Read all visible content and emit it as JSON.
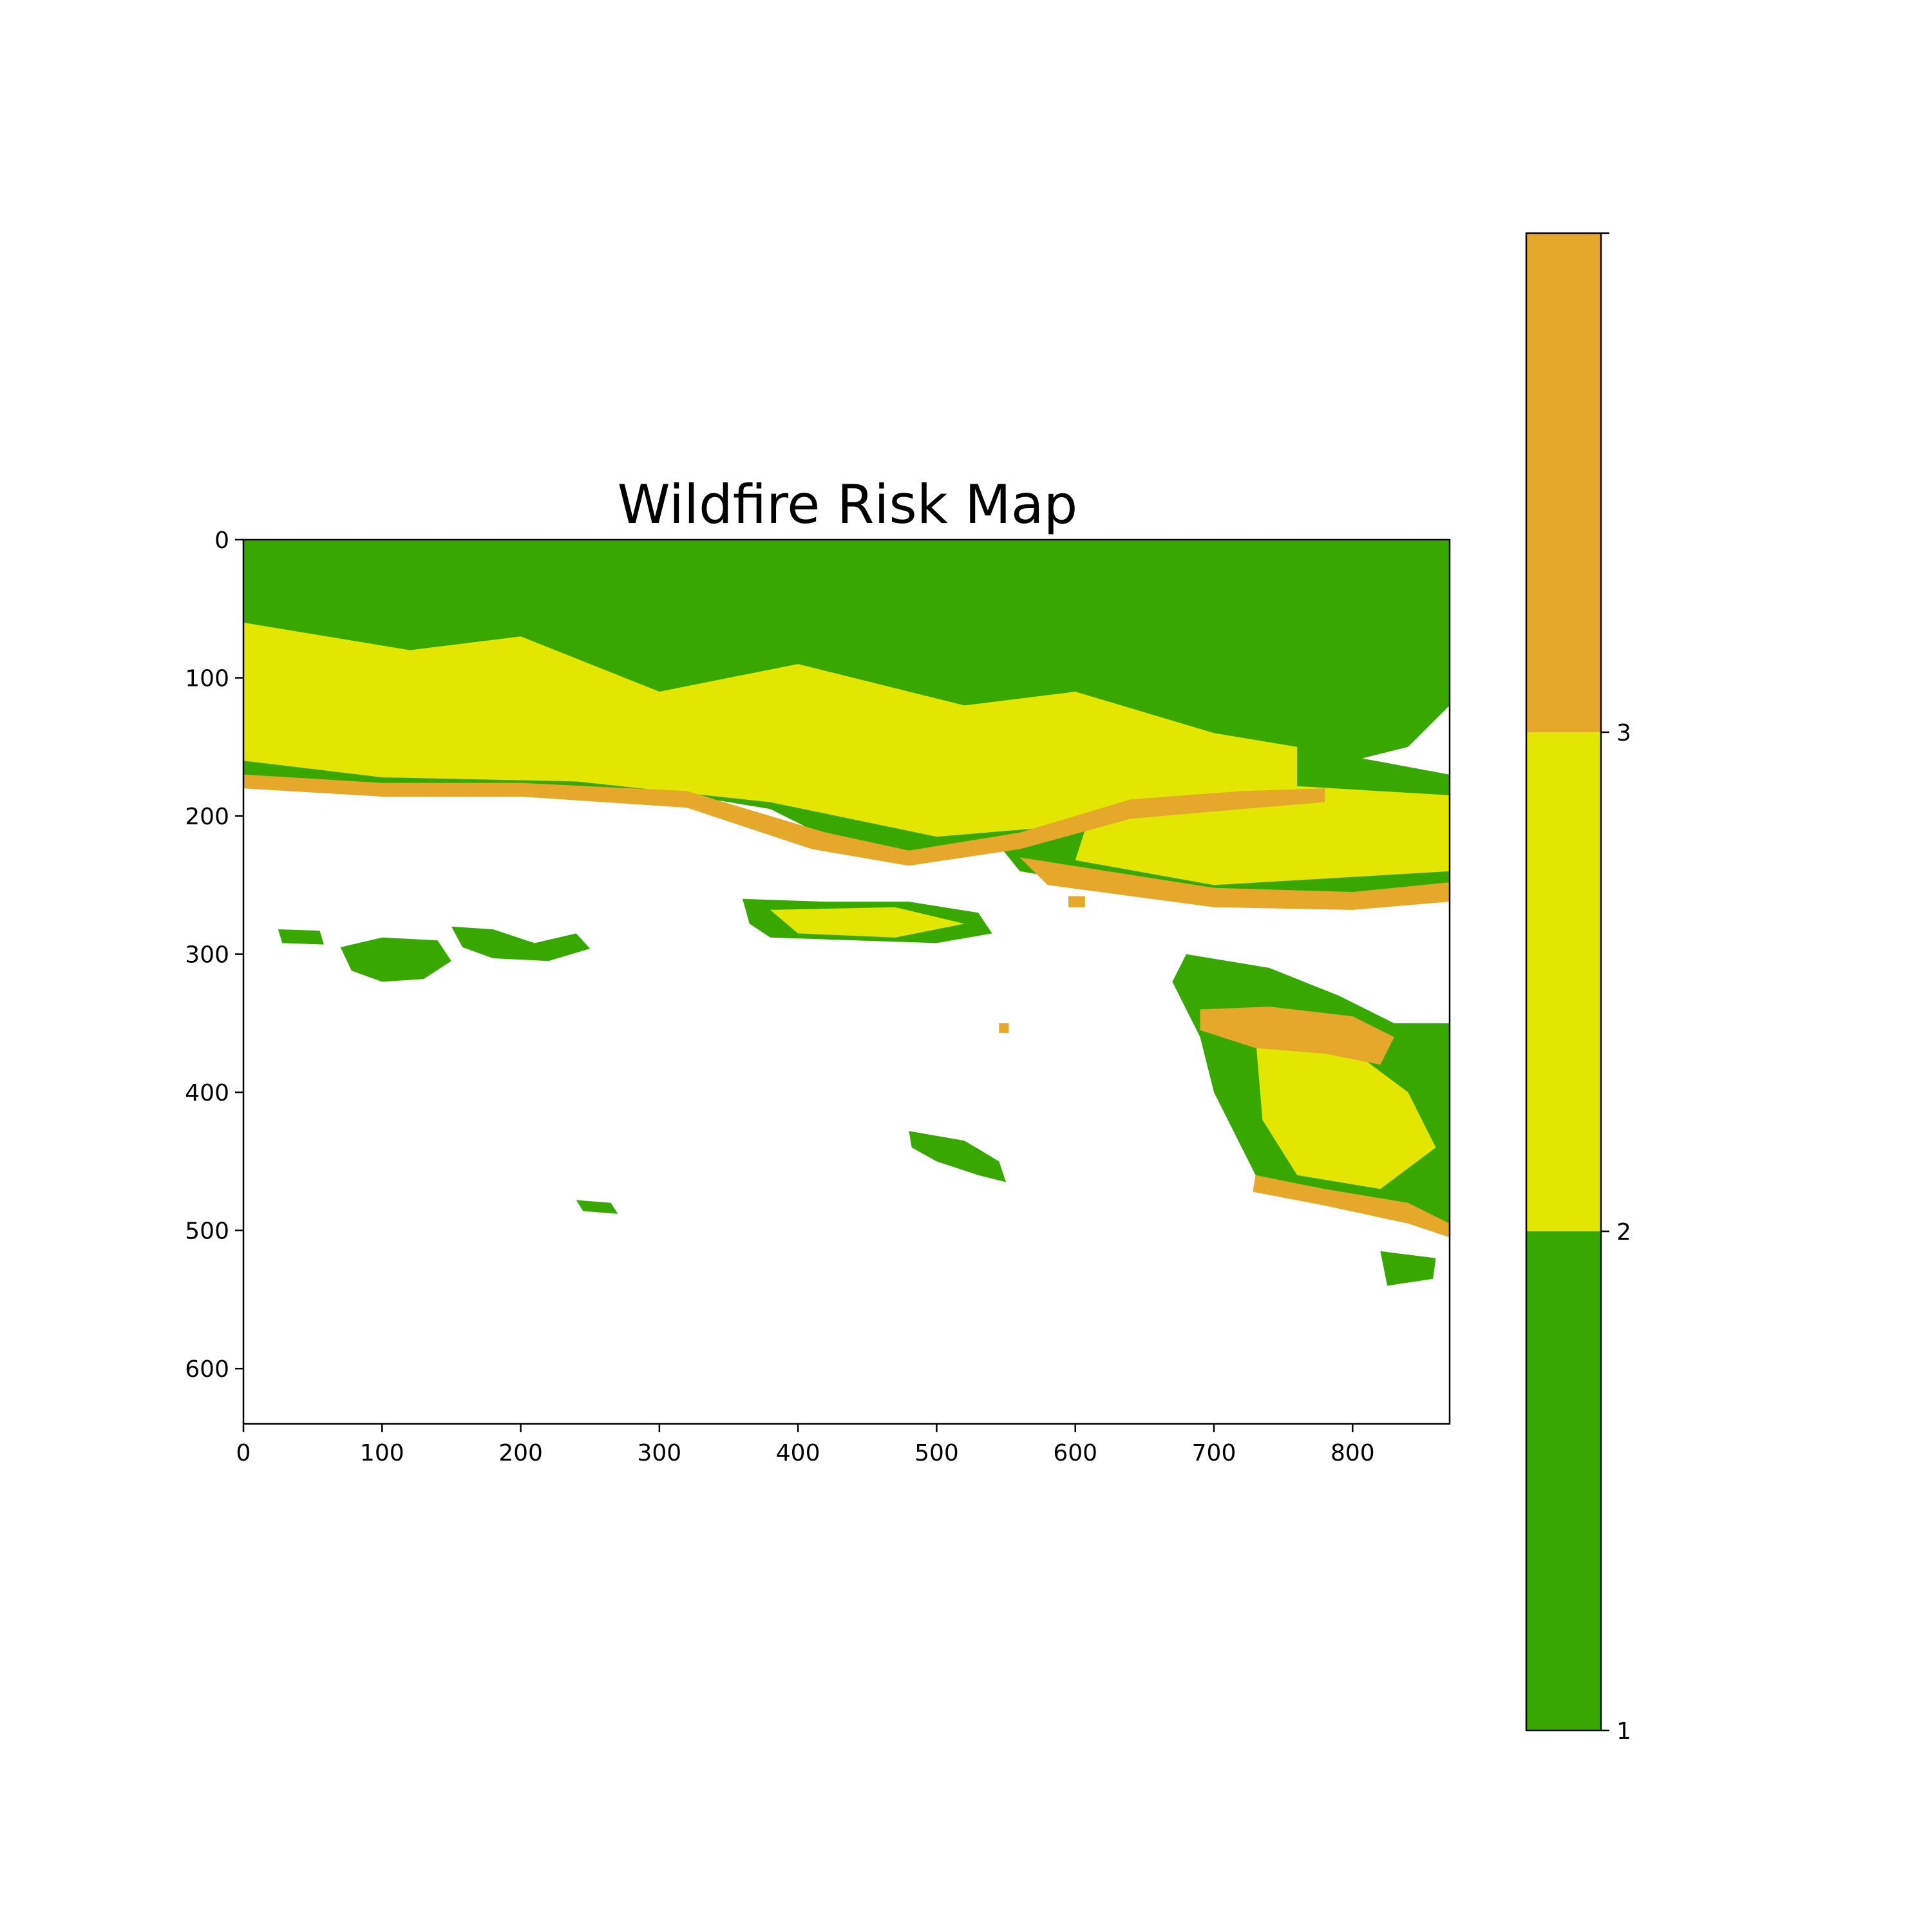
{
  "chart_data": {
    "type": "heatmap",
    "title": "Wildfire Risk Map",
    "xlabel": "",
    "ylabel": "",
    "xlim": [
      0,
      870
    ],
    "ylim": [
      640,
      0
    ],
    "x_ticks": [
      "0",
      "100",
      "200",
      "300",
      "400",
      "500",
      "600",
      "700",
      "800"
    ],
    "y_ticks": [
      "0",
      "100",
      "200",
      "300",
      "400",
      "500",
      "600"
    ],
    "x_tick_values": [
      0,
      100,
      200,
      300,
      400,
      500,
      600,
      700,
      800
    ],
    "y_tick_values": [
      0,
      100,
      200,
      300,
      400,
      500,
      600
    ],
    "colorbar": {
      "range": [
        1,
        4
      ],
      "ticks": [
        "1",
        "2",
        "3"
      ],
      "tick_values": [
        1,
        2,
        3
      ],
      "classes": [
        {
          "value": 1,
          "color": "#38a800"
        },
        {
          "value": 2,
          "color": "#e3e600"
        },
        {
          "value": 3,
          "color": "#e6a82a"
        }
      ]
    },
    "colors": {
      "low": "#38a800",
      "moderate": "#e3e600",
      "high": "#e6a82a",
      "no_data": "#ffffff"
    },
    "regions": [
      {
        "risk": 1,
        "polygon": [
          [
            0,
            0
          ],
          [
            870,
            0
          ],
          [
            870,
            120
          ],
          [
            840,
            150
          ],
          [
            800,
            160
          ],
          [
            760,
            175
          ],
          [
            700,
            180
          ],
          [
            650,
            190
          ],
          [
            600,
            200
          ],
          [
            560,
            215
          ],
          [
            500,
            225
          ],
          [
            460,
            230
          ],
          [
            420,
            215
          ],
          [
            380,
            195
          ],
          [
            320,
            185
          ],
          [
            250,
            180
          ],
          [
            180,
            178
          ],
          [
            100,
            178
          ],
          [
            40,
            178
          ],
          [
            0,
            170
          ]
        ]
      },
      {
        "risk": 1,
        "polygon": [
          [
            600,
            120
          ],
          [
            870,
            170
          ],
          [
            870,
            250
          ],
          [
            800,
            260
          ],
          [
            700,
            262
          ],
          [
            620,
            250
          ],
          [
            560,
            240
          ],
          [
            540,
            215
          ]
        ]
      },
      {
        "risk": 1,
        "polygon": [
          [
            680,
            300
          ],
          [
            740,
            310
          ],
          [
            790,
            330
          ],
          [
            830,
            350
          ],
          [
            870,
            350
          ],
          [
            870,
            500
          ],
          [
            840,
            490
          ],
          [
            800,
            480
          ],
          [
            760,
            470
          ],
          [
            730,
            460
          ],
          [
            720,
            440
          ],
          [
            700,
            400
          ],
          [
            690,
            360
          ],
          [
            670,
            320
          ]
        ]
      },
      {
        "risk": 1,
        "polygon": [
          [
            360,
            260
          ],
          [
            420,
            262
          ],
          [
            480,
            262
          ],
          [
            530,
            270
          ],
          [
            540,
            285
          ],
          [
            500,
            292
          ],
          [
            440,
            290
          ],
          [
            380,
            288
          ],
          [
            365,
            278
          ]
        ]
      },
      {
        "risk": 1,
        "polygon": [
          [
            70,
            295
          ],
          [
            100,
            288
          ],
          [
            140,
            290
          ],
          [
            150,
            305
          ],
          [
            130,
            318
          ],
          [
            100,
            320
          ],
          [
            78,
            312
          ]
        ]
      },
      {
        "risk": 1,
        "polygon": [
          [
            150,
            280
          ],
          [
            180,
            282
          ],
          [
            210,
            292
          ],
          [
            240,
            285
          ],
          [
            250,
            296
          ],
          [
            220,
            305
          ],
          [
            180,
            303
          ],
          [
            158,
            295
          ]
        ]
      },
      {
        "risk": 1,
        "polygon": [
          [
            25,
            282
          ],
          [
            55,
            283
          ],
          [
            58,
            293
          ],
          [
            28,
            292
          ]
        ]
      },
      {
        "risk": 1,
        "polygon": [
          [
            480,
            428
          ],
          [
            520,
            435
          ],
          [
            545,
            450
          ],
          [
            550,
            465
          ],
          [
            530,
            460
          ],
          [
            500,
            450
          ],
          [
            482,
            440
          ]
        ]
      },
      {
        "risk": 1,
        "polygon": [
          [
            240,
            478
          ],
          [
            265,
            480
          ],
          [
            270,
            488
          ],
          [
            245,
            486
          ]
        ]
      },
      {
        "risk": 1,
        "polygon": [
          [
            820,
            515
          ],
          [
            860,
            520
          ],
          [
            858,
            535
          ],
          [
            825,
            540
          ]
        ]
      },
      {
        "risk": 2,
        "polygon": [
          [
            0,
            60
          ],
          [
            120,
            80
          ],
          [
            200,
            70
          ],
          [
            300,
            110
          ],
          [
            400,
            90
          ],
          [
            520,
            120
          ],
          [
            600,
            110
          ],
          [
            700,
            140
          ],
          [
            760,
            150
          ],
          [
            760,
            190
          ],
          [
            620,
            205
          ],
          [
            500,
            215
          ],
          [
            380,
            190
          ],
          [
            240,
            175
          ],
          [
            100,
            172
          ],
          [
            0,
            160
          ]
        ]
      },
      {
        "risk": 2,
        "polygon": [
          [
            620,
            170
          ],
          [
            870,
            185
          ],
          [
            870,
            240
          ],
          [
            700,
            250
          ],
          [
            600,
            232
          ]
        ]
      },
      {
        "risk": 2,
        "polygon": [
          [
            730,
            360
          ],
          [
            800,
            370
          ],
          [
            840,
            400
          ],
          [
            860,
            440
          ],
          [
            820,
            470
          ],
          [
            760,
            460
          ],
          [
            735,
            420
          ]
        ]
      },
      {
        "risk": 2,
        "polygon": [
          [
            380,
            268
          ],
          [
            470,
            266
          ],
          [
            520,
            278
          ],
          [
            470,
            288
          ],
          [
            400,
            285
          ]
        ]
      },
      {
        "risk": 3,
        "polygon": [
          [
            0,
            170
          ],
          [
            100,
            176
          ],
          [
            200,
            176
          ],
          [
            320,
            182
          ],
          [
            420,
            212
          ],
          [
            480,
            225
          ],
          [
            560,
            212
          ],
          [
            640,
            188
          ],
          [
            720,
            182
          ],
          [
            780,
            180
          ],
          [
            780,
            190
          ],
          [
            720,
            195
          ],
          [
            640,
            202
          ],
          [
            560,
            224
          ],
          [
            480,
            236
          ],
          [
            410,
            224
          ],
          [
            320,
            194
          ],
          [
            200,
            186
          ],
          [
            100,
            186
          ],
          [
            0,
            180
          ]
        ]
      },
      {
        "risk": 3,
        "polygon": [
          [
            560,
            230
          ],
          [
            700,
            252
          ],
          [
            800,
            255
          ],
          [
            870,
            248
          ],
          [
            870,
            262
          ],
          [
            800,
            268
          ],
          [
            700,
            266
          ],
          [
            580,
            250
          ]
        ]
      },
      {
        "risk": 3,
        "polygon": [
          [
            690,
            340
          ],
          [
            740,
            338
          ],
          [
            800,
            345
          ],
          [
            830,
            360
          ],
          [
            820,
            380
          ],
          [
            780,
            372
          ],
          [
            730,
            368
          ],
          [
            690,
            355
          ]
        ]
      },
      {
        "risk": 3,
        "polygon": [
          [
            730,
            460
          ],
          [
            780,
            470
          ],
          [
            840,
            480
          ],
          [
            870,
            495
          ],
          [
            870,
            505
          ],
          [
            840,
            495
          ],
          [
            780,
            482
          ],
          [
            728,
            472
          ]
        ]
      },
      {
        "risk": 3,
        "polygon": [
          [
            545,
            350
          ],
          [
            552,
            350
          ],
          [
            552,
            357
          ],
          [
            545,
            357
          ]
        ]
      },
      {
        "risk": 3,
        "polygon": [
          [
            595,
            258
          ],
          [
            607,
            258
          ],
          [
            607,
            266
          ],
          [
            595,
            266
          ]
        ]
      }
    ]
  }
}
